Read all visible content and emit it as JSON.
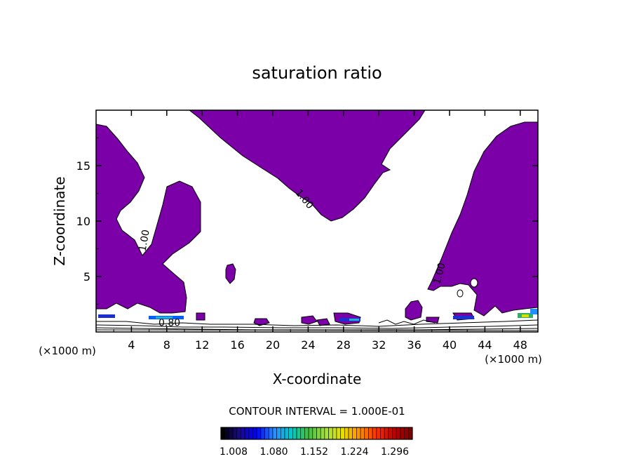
{
  "chart_data": {
    "type": "contour",
    "title": "saturation ratio",
    "xlabel": "X-coordinate",
    "ylabel": "Z-coordinate",
    "x_unit_label": "(×1000 m)",
    "z_unit_label": "(×1000 m)",
    "xlim": [
      0,
      50
    ],
    "ylim": [
      0,
      20
    ],
    "x_ticks": [
      4,
      8,
      12,
      16,
      20,
      24,
      28,
      32,
      36,
      40,
      44,
      48
    ],
    "y_ticks": [
      5,
      10,
      15
    ],
    "fill_color": "#7b00a8",
    "contour_labels": [
      {
        "text": "1.00",
        "x": 23.3,
        "z": 11.8,
        "angle": 50
      },
      {
        "text": "1.00",
        "x": 5.8,
        "z": 8.2,
        "angle": -80
      },
      {
        "text": "1.00",
        "x": 39.2,
        "z": 5.2,
        "angle": -75
      },
      {
        "text": "0.80",
        "x": 8.3,
        "z": 0.55,
        "angle": 0
      }
    ],
    "contour_interval_text": "CONTOUR INTERVAL = 1.000E-01",
    "colorbar": {
      "tick_labels": [
        "1.008",
        "1.080",
        "1.152",
        "1.224",
        "1.296"
      ],
      "colors": [
        "#000000",
        "#1a0a8a",
        "#0000ff",
        "#2a8cff",
        "#00c8c8",
        "#40c040",
        "#a0e040",
        "#e8e000",
        "#ff9000",
        "#ff3000",
        "#c00000",
        "#800000"
      ]
    }
  }
}
